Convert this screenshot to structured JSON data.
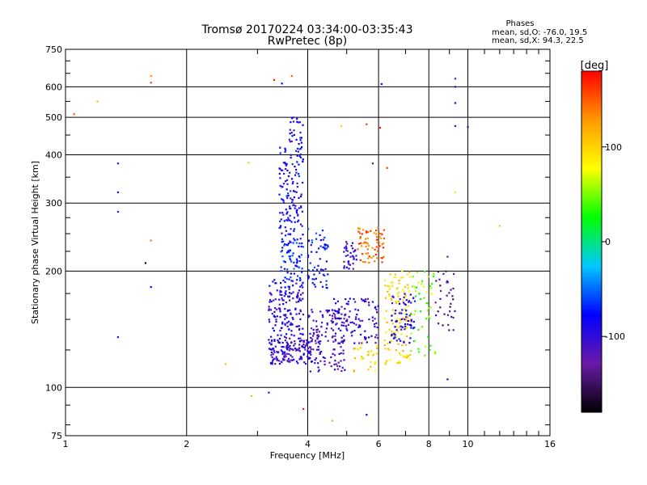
{
  "chart_data": {
    "type": "scatter",
    "title": "Tromsø 20170224 03:34:00-03:35:43",
    "subtitle": "RwPretec (8p)",
    "stats": {
      "heading": "Phases",
      "line1": "mean, sd,O: -76.0, 19.5",
      "line2": "mean, sd,X:  94.3, 22.5"
    },
    "xlabel": "Frequency [MHz]",
    "ylabel": "Stationary phase Virtual Height [km]",
    "x_scale": "log",
    "y_scale": "log",
    "xlim": [
      1,
      16
    ],
    "ylim": [
      75,
      750
    ],
    "x_ticks": [
      1,
      2,
      4,
      6,
      8,
      10,
      16
    ],
    "y_ticks": [
      75,
      100,
      200,
      300,
      400,
      500,
      600,
      750
    ],
    "grid": true,
    "colorbar": {
      "label": "[deg]",
      "range": [
        -180,
        180
      ],
      "tick_labels": [
        "100",
        "0",
        "-100"
      ],
      "tick_values": [
        100,
        0,
        -100
      ],
      "colors": [
        "#000000",
        "#6a1aa6",
        "#0000ff",
        "#00c8ff",
        "#00ff00",
        "#ffff00",
        "#ff9900",
        "#ff0000"
      ]
    },
    "clusters": [
      {
        "x": [
          3.2,
          4.1
        ],
        "y": [
          115,
          135
        ],
        "phase": -105,
        "n": 160
      },
      {
        "x": [
          3.2,
          3.9
        ],
        "y": [
          135,
          190
        ],
        "phase": -95,
        "n": 150
      },
      {
        "x": [
          3.4,
          3.9
        ],
        "y": [
          190,
          240
        ],
        "phase": -70,
        "n": 70
      },
      {
        "x": [
          3.4,
          3.9
        ],
        "y": [
          240,
          420
        ],
        "phase": -85,
        "n": 140
      },
      {
        "x": [
          3.6,
          3.9
        ],
        "y": [
          420,
          500
        ],
        "phase": -95,
        "n": 25
      },
      {
        "x": [
          4.0,
          4.5
        ],
        "y": [
          180,
          260
        ],
        "phase": -75,
        "n": 60
      },
      {
        "x": [
          4.0,
          5.0
        ],
        "y": [
          110,
          160
        ],
        "phase": -110,
        "n": 130
      },
      {
        "x": [
          4.6,
          6.0
        ],
        "y": [
          130,
          170
        ],
        "phase": -105,
        "n": 110
      },
      {
        "x": [
          4.9,
          5.3
        ],
        "y": [
          200,
          240
        ],
        "phase": -110,
        "n": 35
      },
      {
        "x": [
          5.3,
          6.2
        ],
        "y": [
          210,
          260
        ],
        "phase": 145,
        "n": 70
      },
      {
        "x": [
          5.2,
          6.0
        ],
        "y": [
          110,
          130
        ],
        "phase": 100,
        "n": 30
      },
      {
        "x": [
          6.2,
          7.2
        ],
        "y": [
          115,
          200
        ],
        "phase": 95,
        "n": 120
      },
      {
        "x": [
          6.4,
          7.4
        ],
        "y": [
          130,
          175
        ],
        "phase": -90,
        "n": 70
      },
      {
        "x": [
          7.2,
          8.3
        ],
        "y": [
          120,
          200
        ],
        "phase": 50,
        "n": 50
      },
      {
        "x": [
          8.3,
          9.3
        ],
        "y": [
          140,
          200
        ],
        "phase": -130,
        "n": 35
      }
    ],
    "outliers": [
      {
        "x": 1.05,
        "y": 510,
        "phase": 150
      },
      {
        "x": 1.2,
        "y": 550,
        "phase": 110
      },
      {
        "x": 1.35,
        "y": 380,
        "phase": -105
      },
      {
        "x": 1.35,
        "y": 320,
        "phase": -90
      },
      {
        "x": 1.35,
        "y": 285,
        "phase": -110
      },
      {
        "x": 1.35,
        "y": 135,
        "phase": -95
      },
      {
        "x": 1.58,
        "y": 210,
        "phase": -170
      },
      {
        "x": 1.63,
        "y": 640,
        "phase": 130
      },
      {
        "x": 1.63,
        "y": 615,
        "phase": 160
      },
      {
        "x": 1.63,
        "y": 240,
        "phase": 140
      },
      {
        "x": 1.63,
        "y": 182,
        "phase": -75
      },
      {
        "x": 2.5,
        "y": 115,
        "phase": 110
      },
      {
        "x": 2.85,
        "y": 382,
        "phase": 100
      },
      {
        "x": 3.3,
        "y": 625,
        "phase": 170
      },
      {
        "x": 3.45,
        "y": 612,
        "phase": -80
      },
      {
        "x": 3.65,
        "y": 640,
        "phase": 150
      },
      {
        "x": 4.85,
        "y": 475,
        "phase": 100
      },
      {
        "x": 5.6,
        "y": 480,
        "phase": 160
      },
      {
        "x": 6.1,
        "y": 610,
        "phase": -80
      },
      {
        "x": 6.05,
        "y": 470,
        "phase": 170
      },
      {
        "x": 5.8,
        "y": 380,
        "phase": -140
      },
      {
        "x": 6.3,
        "y": 370,
        "phase": 160
      },
      {
        "x": 9.3,
        "y": 630,
        "phase": -120
      },
      {
        "x": 9.3,
        "y": 600,
        "phase": -100
      },
      {
        "x": 9.3,
        "y": 545,
        "phase": -85
      },
      {
        "x": 9.3,
        "y": 475,
        "phase": -100
      },
      {
        "x": 9.3,
        "y": 320,
        "phase": 70
      },
      {
        "x": 10.0,
        "y": 472,
        "phase": -100
      },
      {
        "x": 12.0,
        "y": 262,
        "phase": 110
      },
      {
        "x": 8.9,
        "y": 218,
        "phase": -120
      },
      {
        "x": 8.9,
        "y": 105,
        "phase": -90
      },
      {
        "x": 4.6,
        "y": 82,
        "phase": 120
      },
      {
        "x": 5.6,
        "y": 85,
        "phase": -90
      },
      {
        "x": 3.9,
        "y": 88,
        "phase": 170
      },
      {
        "x": 3.2,
        "y": 97,
        "phase": -100
      },
      {
        "x": 2.9,
        "y": 95,
        "phase": 110
      }
    ]
  }
}
